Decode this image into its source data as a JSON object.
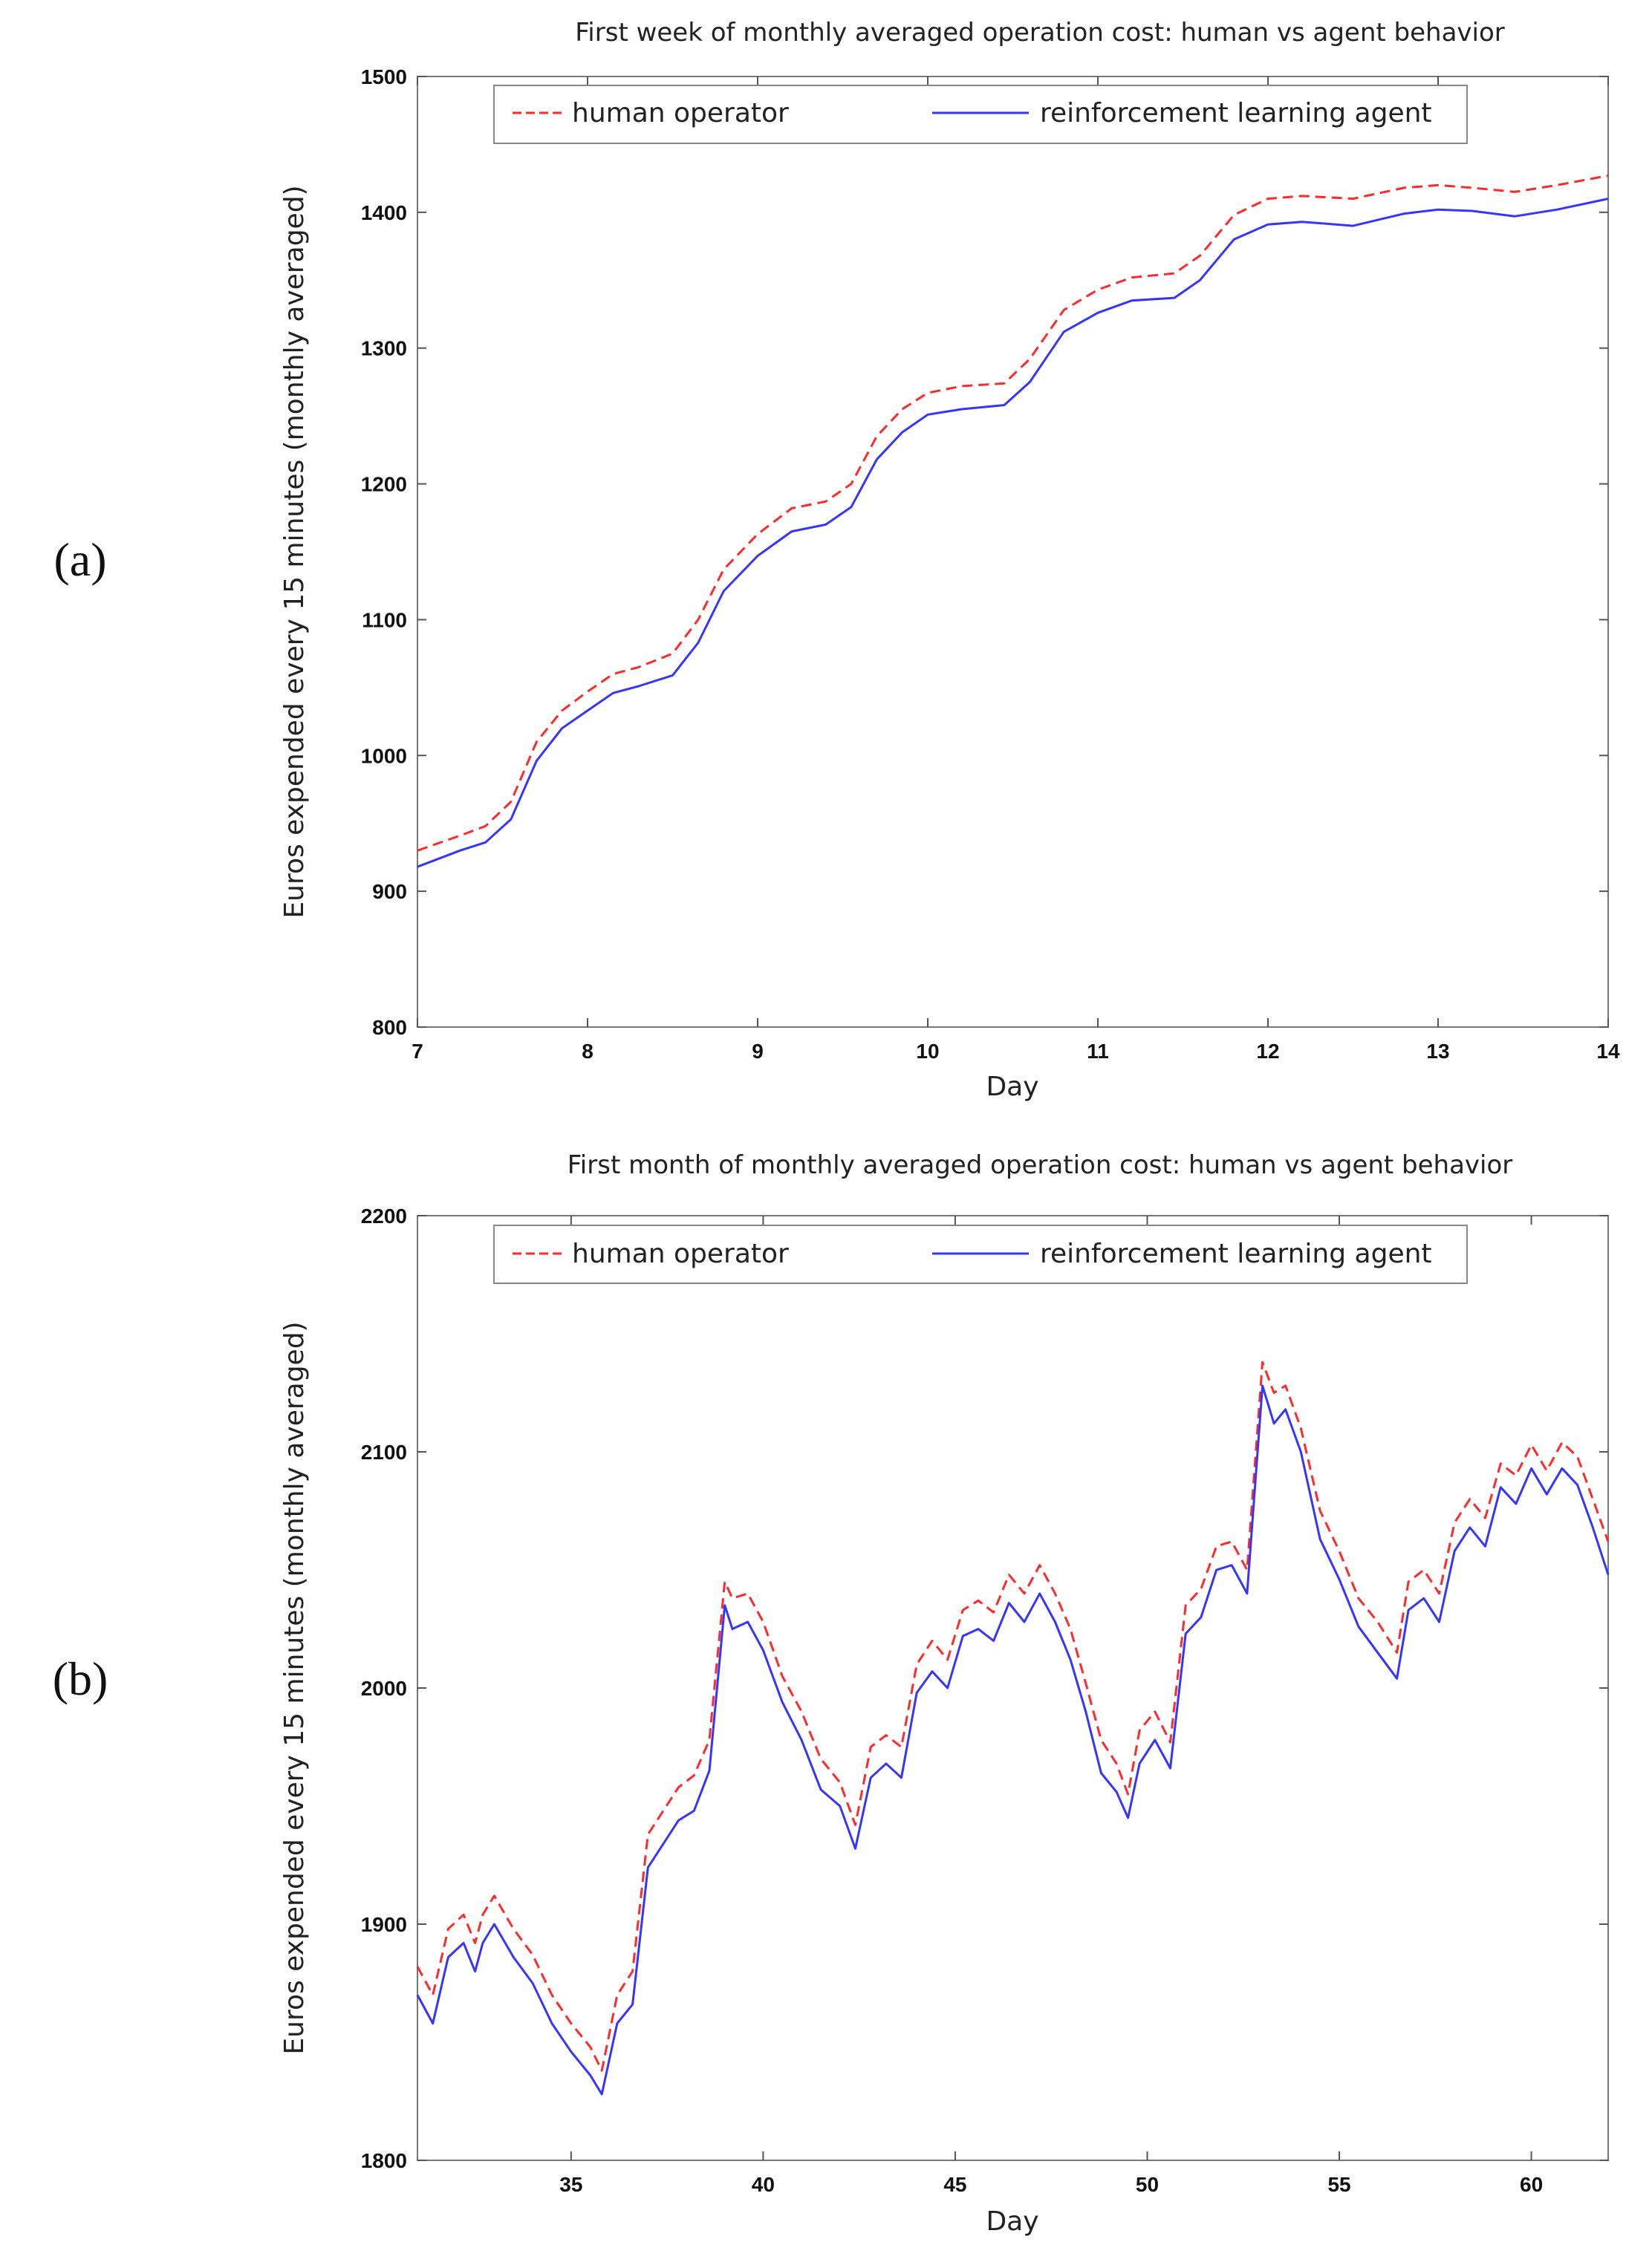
{
  "panel_labels": [
    "(a)",
    "(b)"
  ],
  "chart_data": [
    {
      "type": "line",
      "title": "First week of monthly averaged operation cost: human vs agent behavior",
      "xlabel": "Day",
      "ylabel": "Euros expended every 15 minutes (monthly averaged)",
      "xlim": [
        7,
        14
      ],
      "ylim": [
        800,
        1500
      ],
      "xticks": [
        7,
        8,
        9,
        10,
        11,
        12,
        13,
        14
      ],
      "yticks": [
        800,
        900,
        1000,
        1100,
        1200,
        1300,
        1400,
        1500
      ],
      "grid": false,
      "legend": "top",
      "series": [
        {
          "name": "human operator",
          "color": "#ff2a2a",
          "style": "dashed",
          "x": [
            7.0,
            7.25,
            7.4,
            7.55,
            7.7,
            7.85,
            8.0,
            8.15,
            8.3,
            8.5,
            8.65,
            8.8,
            9.0,
            9.2,
            9.4,
            9.55,
            9.7,
            9.85,
            10.0,
            10.2,
            10.45,
            10.6,
            10.8,
            11.0,
            11.2,
            11.45,
            11.6,
            11.8,
            12.0,
            12.2,
            12.5,
            12.8,
            13.0,
            13.2,
            13.45,
            13.7,
            14.0
          ],
          "y": [
            930,
            941,
            948,
            966,
            1010,
            1033,
            1047,
            1060,
            1065,
            1075,
            1100,
            1137,
            1163,
            1182,
            1187,
            1200,
            1235,
            1255,
            1267,
            1272,
            1274,
            1292,
            1328,
            1343,
            1352,
            1355,
            1368,
            1398,
            1410,
            1412,
            1410,
            1418,
            1420,
            1418,
            1415,
            1420,
            1427
          ]
        },
        {
          "name": "reinforcement learning agent",
          "color": "#3535ff",
          "style": "solid",
          "x": [
            7.0,
            7.25,
            7.4,
            7.55,
            7.7,
            7.85,
            8.0,
            8.15,
            8.3,
            8.5,
            8.65,
            8.8,
            9.0,
            9.2,
            9.4,
            9.55,
            9.7,
            9.85,
            10.0,
            10.2,
            10.45,
            10.6,
            10.8,
            11.0,
            11.2,
            11.45,
            11.6,
            11.8,
            12.0,
            12.2,
            12.5,
            12.8,
            13.0,
            13.2,
            13.45,
            13.7,
            14.0
          ],
          "y": [
            918,
            930,
            936,
            953,
            996,
            1020,
            1033,
            1046,
            1051,
            1059,
            1083,
            1121,
            1147,
            1165,
            1170,
            1183,
            1218,
            1238,
            1251,
            1255,
            1258,
            1275,
            1312,
            1326,
            1335,
            1337,
            1350,
            1380,
            1391,
            1393,
            1390,
            1399,
            1402,
            1401,
            1397,
            1402,
            1410
          ]
        }
      ]
    },
    {
      "type": "line",
      "title": "First month of monthly averaged operation cost: human vs agent behavior",
      "xlabel": "Day",
      "ylabel": "Euros expended every 15 minutes (monthly averaged)",
      "xlim": [
        31,
        62
      ],
      "ylim": [
        1800,
        2200
      ],
      "xticks": [
        35,
        40,
        45,
        50,
        55,
        60
      ],
      "yticks": [
        1800,
        1900,
        2000,
        2100,
        2200
      ],
      "grid": false,
      "legend": "top",
      "series": [
        {
          "name": "human operator",
          "color": "#ff2a2a",
          "style": "dashed",
          "x": [
            31.0,
            31.4,
            31.8,
            32.2,
            32.5,
            32.7,
            33.0,
            33.5,
            34.0,
            34.5,
            35.0,
            35.5,
            35.8,
            36.2,
            36.6,
            37.0,
            37.4,
            37.8,
            38.2,
            38.6,
            39.0,
            39.2,
            39.6,
            40.0,
            40.5,
            41.0,
            41.5,
            42.0,
            42.4,
            42.8,
            43.2,
            43.6,
            44.0,
            44.4,
            44.8,
            45.2,
            45.6,
            46.0,
            46.4,
            46.8,
            47.2,
            47.6,
            48.0,
            48.4,
            48.8,
            49.2,
            49.5,
            49.8,
            50.2,
            50.6,
            51.0,
            51.4,
            51.8,
            52.2,
            52.6,
            53.0,
            53.3,
            53.6,
            54.0,
            54.5,
            55.0,
            55.5,
            56.0,
            56.5,
            56.8,
            57.2,
            57.6,
            58.0,
            58.4,
            58.8,
            59.2,
            59.6,
            60.0,
            60.4,
            60.8,
            61.2,
            61.6,
            62.0
          ],
          "y": [
            1882,
            1870,
            1898,
            1904,
            1892,
            1904,
            1912,
            1898,
            1887,
            1870,
            1858,
            1848,
            1838,
            1870,
            1880,
            1938,
            1948,
            1958,
            1963,
            1978,
            2045,
            2038,
            2040,
            2028,
            2005,
            1990,
            1970,
            1960,
            1942,
            1975,
            1980,
            1975,
            2010,
            2020,
            2012,
            2033,
            2037,
            2032,
            2048,
            2040,
            2052,
            2040,
            2025,
            2002,
            1978,
            1968,
            1955,
            1982,
            1990,
            1977,
            2035,
            2042,
            2060,
            2062,
            2050,
            2138,
            2125,
            2128,
            2110,
            2075,
            2058,
            2038,
            2028,
            2015,
            2045,
            2050,
            2040,
            2070,
            2080,
            2072,
            2095,
            2090,
            2103,
            2092,
            2104,
            2098,
            2080,
            2062
          ]
        },
        {
          "name": "reinforcement learning agent",
          "color": "#3535ff",
          "style": "solid",
          "x": [
            31.0,
            31.4,
            31.8,
            32.2,
            32.5,
            32.7,
            33.0,
            33.5,
            34.0,
            34.5,
            35.0,
            35.5,
            35.8,
            36.2,
            36.6,
            37.0,
            37.4,
            37.8,
            38.2,
            38.6,
            39.0,
            39.2,
            39.6,
            40.0,
            40.5,
            41.0,
            41.5,
            42.0,
            42.4,
            42.8,
            43.2,
            43.6,
            44.0,
            44.4,
            44.8,
            45.2,
            45.6,
            46.0,
            46.4,
            46.8,
            47.2,
            47.6,
            48.0,
            48.4,
            48.8,
            49.2,
            49.5,
            49.8,
            50.2,
            50.6,
            51.0,
            51.4,
            51.8,
            52.2,
            52.6,
            53.0,
            53.3,
            53.6,
            54.0,
            54.5,
            55.0,
            55.5,
            56.0,
            56.5,
            56.8,
            57.2,
            57.6,
            58.0,
            58.4,
            58.8,
            59.2,
            59.6,
            60.0,
            60.4,
            60.8,
            61.2,
            61.6,
            62.0
          ],
          "y": [
            1870,
            1858,
            1886,
            1892,
            1880,
            1892,
            1900,
            1886,
            1875,
            1858,
            1846,
            1836,
            1828,
            1858,
            1866,
            1924,
            1934,
            1944,
            1948,
            1965,
            2035,
            2025,
            2028,
            2016,
            1994,
            1978,
            1957,
            1950,
            1932,
            1962,
            1968,
            1962,
            1998,
            2007,
            2000,
            2022,
            2025,
            2020,
            2036,
            2028,
            2040,
            2028,
            2012,
            1990,
            1964,
            1956,
            1945,
            1968,
            1978,
            1966,
            2023,
            2030,
            2050,
            2052,
            2040,
            2128,
            2112,
            2118,
            2100,
            2063,
            2046,
            2026,
            2015,
            2004,
            2033,
            2038,
            2028,
            2058,
            2068,
            2060,
            2085,
            2078,
            2093,
            2082,
            2093,
            2086,
            2068,
            2048
          ]
        }
      ]
    }
  ]
}
